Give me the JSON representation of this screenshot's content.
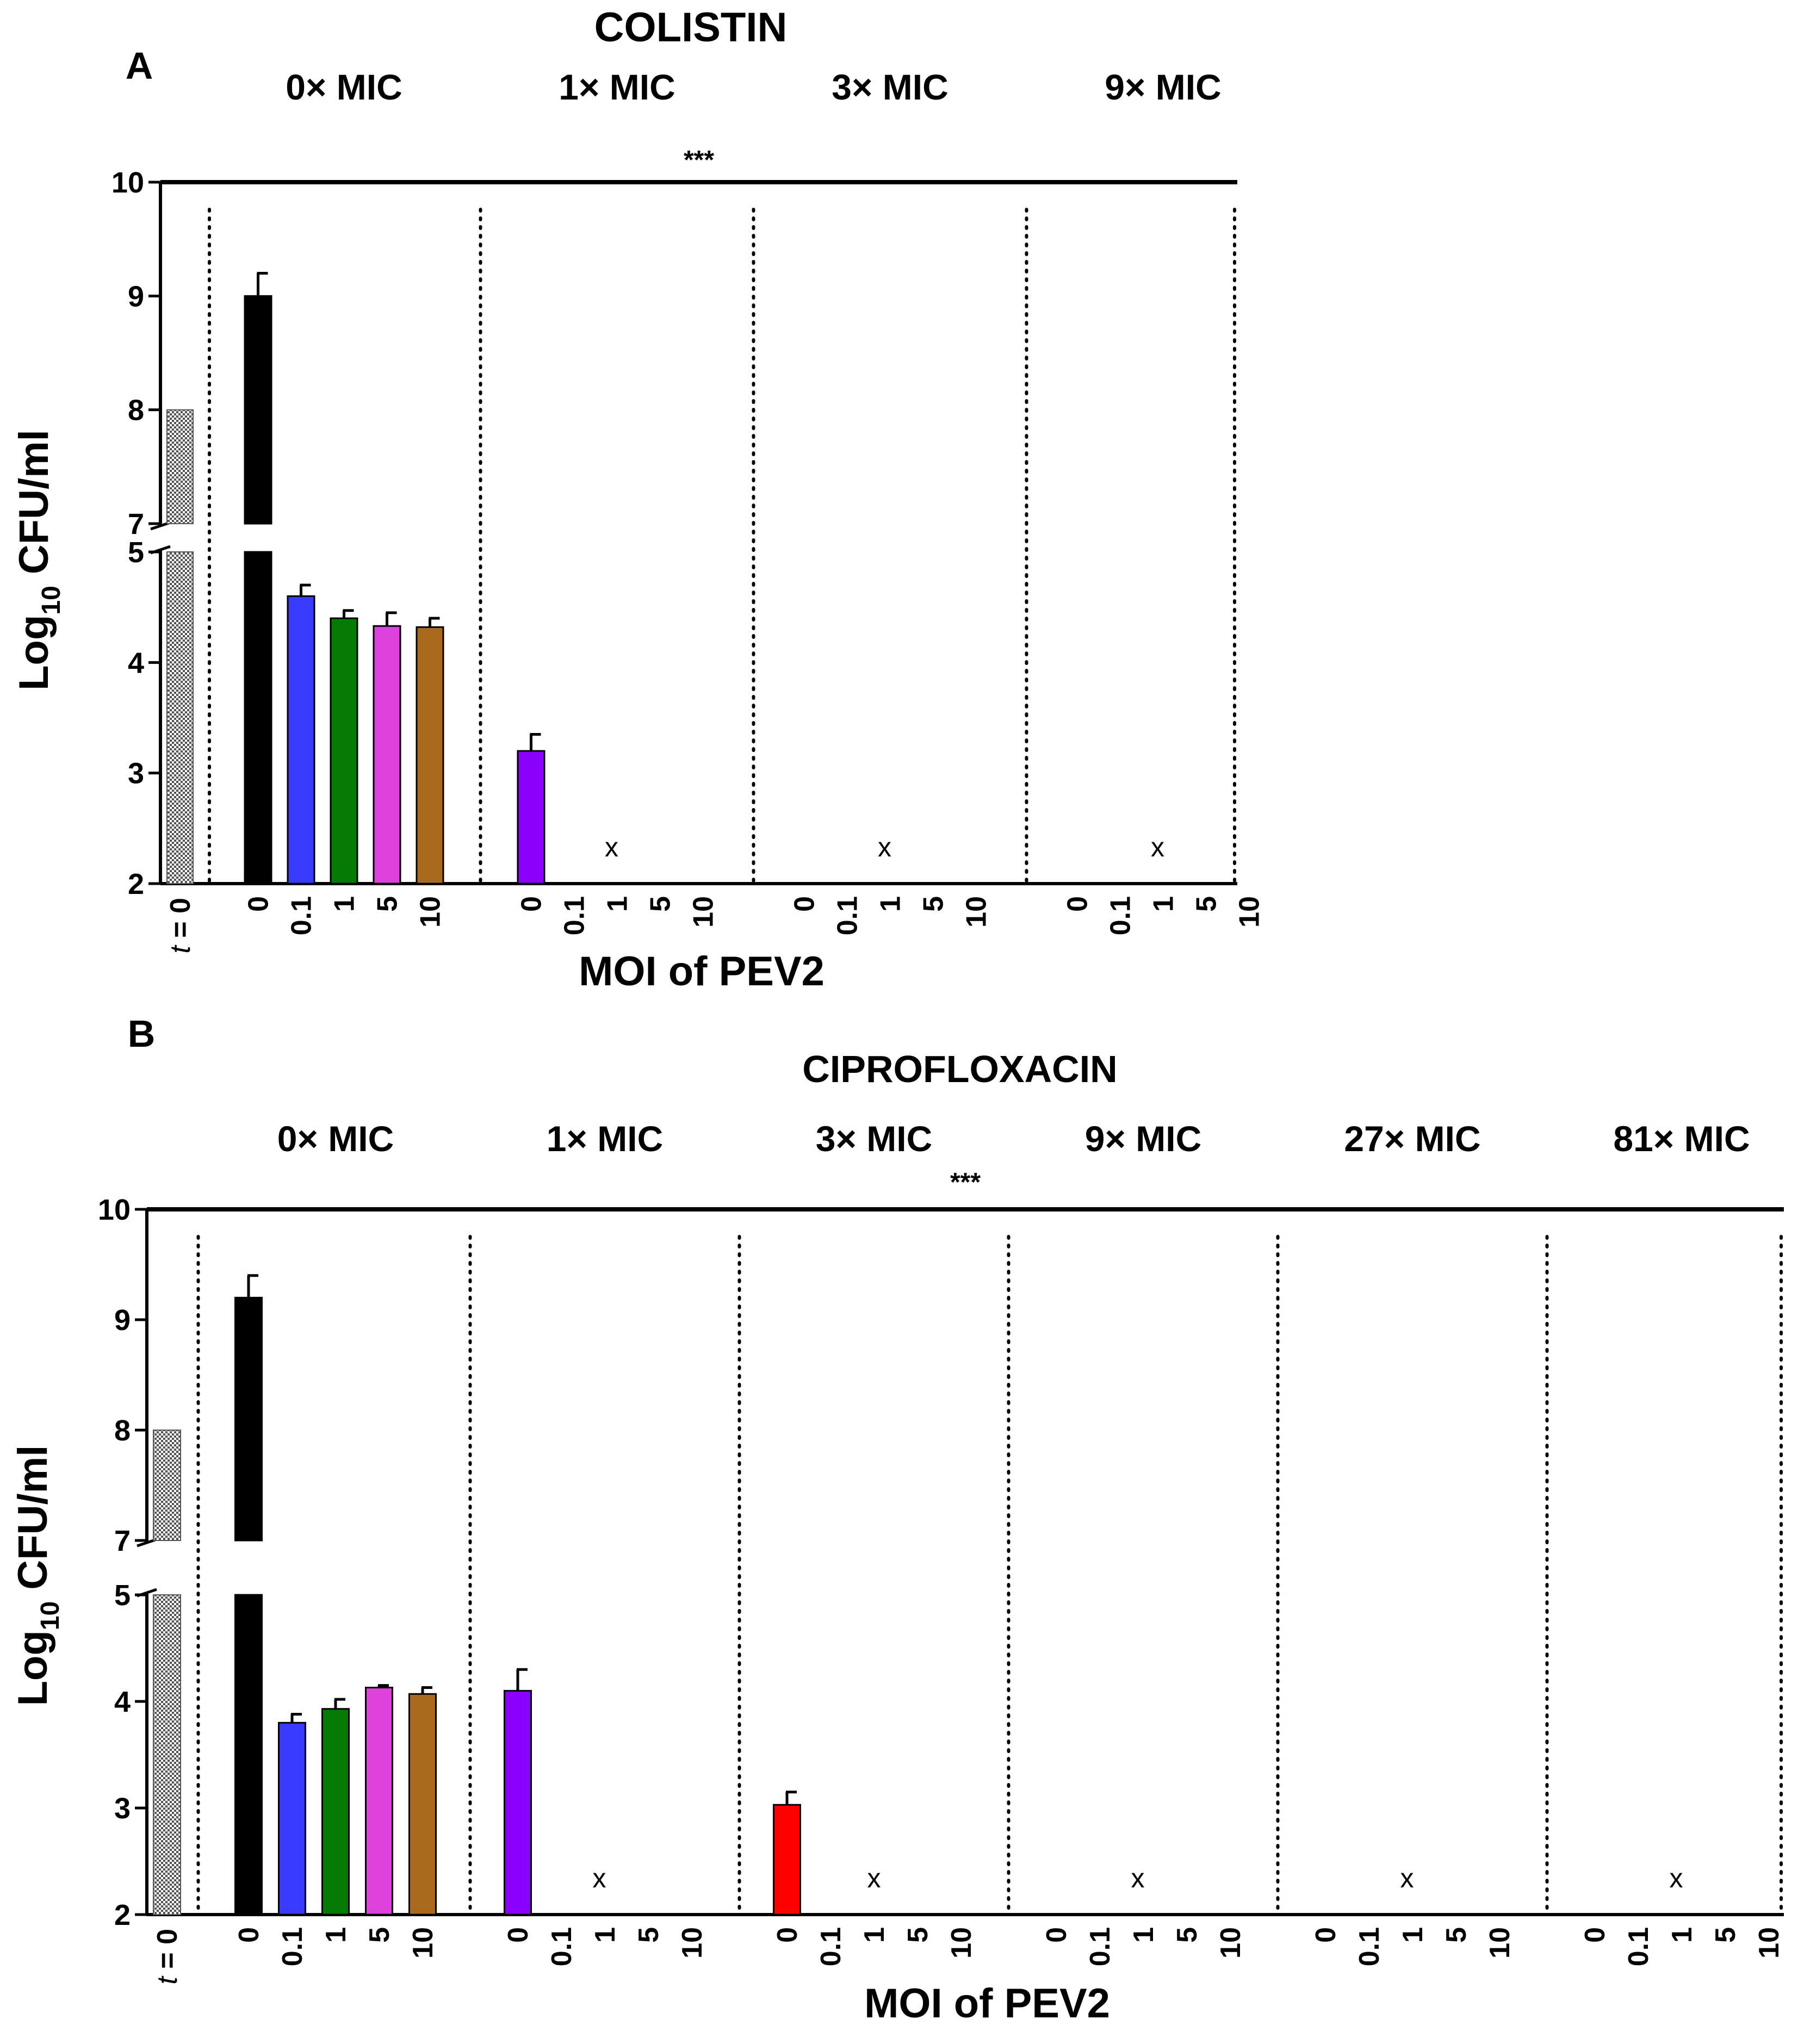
{
  "chart_data": [
    {
      "panel_label": "A",
      "type": "bar",
      "title": "COLISTIN",
      "ylabel_main": "Log",
      "ylabel_sub": "10",
      "ylabel_rest": " CFU/ml",
      "xlabel": "MOI of PEV2",
      "significance": "***",
      "y_upper_ticks": [
        "10",
        "9",
        "8",
        "7"
      ],
      "y_lower_ticks": [
        "5",
        "4",
        "3",
        "2"
      ],
      "y_break": [
        5,
        7
      ],
      "ylim": [
        2,
        10
      ],
      "baseline": {
        "label": "t = 0",
        "label_italic": "t",
        "label_rest": " = 0",
        "value": 8,
        "color": "#c8c8c8"
      },
      "moi_levels": [
        "0",
        "0.1",
        "1",
        "5",
        "10"
      ],
      "series_colors": [
        "#000000",
        "#3b3bff",
        "#057a05",
        "#dd42dd",
        "#a86a1e",
        "#8b00ff"
      ],
      "groups": [
        {
          "label": "0× MIC",
          "values": [
            9.0,
            4.6,
            4.4,
            4.33,
            4.32
          ],
          "errors": [
            0.2,
            0.1,
            0.07,
            0.12,
            0.08
          ],
          "colors": [
            "#000000",
            "#3b3bff",
            "#057a05",
            "#dd42dd",
            "#a86a1e"
          ],
          "marker": ""
        },
        {
          "label": "1× MIC",
          "values": [
            3.2,
            null,
            null,
            null,
            null
          ],
          "errors": [
            0.15,
            null,
            null,
            null,
            null
          ],
          "colors": [
            "#8b00ff",
            null,
            null,
            null,
            null
          ],
          "marker": "x"
        },
        {
          "label": "3× MIC",
          "values": [
            null,
            null,
            null,
            null,
            null
          ],
          "errors": [
            null,
            null,
            null,
            null,
            null
          ],
          "colors": [
            null,
            null,
            null,
            null,
            null
          ],
          "marker": "x"
        },
        {
          "label": "9× MIC",
          "values": [
            null,
            null,
            null,
            null,
            null
          ],
          "errors": [
            null,
            null,
            null,
            null,
            null
          ],
          "colors": [
            null,
            null,
            null,
            null,
            null
          ],
          "marker": "x"
        }
      ]
    },
    {
      "panel_label": "B",
      "type": "bar",
      "title": "CIPROFLOXACIN",
      "ylabel_main": "Log",
      "ylabel_sub": "10",
      "ylabel_rest": " CFU/ml",
      "xlabel": "MOI of PEV2",
      "significance": "***",
      "y_upper_ticks": [
        "10",
        "9",
        "8",
        "7"
      ],
      "y_lower_ticks": [
        "5",
        "4",
        "3",
        "2"
      ],
      "y_break": [
        5,
        7
      ],
      "ylim": [
        2,
        10
      ],
      "baseline": {
        "label": "t = 0",
        "label_italic": "t",
        "label_rest": " = 0",
        "value": 8,
        "color": "#c8c8c8"
      },
      "moi_levels": [
        "0",
        "0.1",
        "1",
        "5",
        "10"
      ],
      "series_colors": [
        "#000000",
        "#3b3bff",
        "#057a05",
        "#dd42dd",
        "#a86a1e",
        "#8b00ff",
        "#ff0000"
      ],
      "groups": [
        {
          "label": "0× MIC",
          "values": [
            9.2,
            3.8,
            3.93,
            4.13,
            4.07
          ],
          "errors": [
            0.2,
            0.08,
            0.09,
            0.02,
            0.06
          ],
          "colors": [
            "#000000",
            "#3b3bff",
            "#057a05",
            "#dd42dd",
            "#a86a1e"
          ],
          "marker": ""
        },
        {
          "label": "1× MIC",
          "values": [
            4.1,
            null,
            null,
            null,
            null
          ],
          "errors": [
            0.2,
            null,
            null,
            null,
            null
          ],
          "colors": [
            "#8b00ff",
            null,
            null,
            null,
            null
          ],
          "marker": "x"
        },
        {
          "label": "3× MIC",
          "values": [
            3.03,
            null,
            null,
            null,
            null
          ],
          "errors": [
            0.12,
            null,
            null,
            null,
            null
          ],
          "colors": [
            "#ff0000",
            null,
            null,
            null,
            null
          ],
          "marker": "x"
        },
        {
          "label": "9× MIC",
          "values": [
            null,
            null,
            null,
            null,
            null
          ],
          "errors": [
            null,
            null,
            null,
            null,
            null
          ],
          "colors": [
            null,
            null,
            null,
            null,
            null
          ],
          "marker": "x"
        },
        {
          "label": "27× MIC",
          "values": [
            null,
            null,
            null,
            null,
            null
          ],
          "errors": [
            null,
            null,
            null,
            null,
            null
          ],
          "colors": [
            null,
            null,
            null,
            null,
            null
          ],
          "marker": "x"
        },
        {
          "label": "81× MIC",
          "values": [
            null,
            null,
            null,
            null,
            null
          ],
          "errors": [
            null,
            null,
            null,
            null,
            null
          ],
          "colors": [
            null,
            null,
            null,
            null,
            null
          ],
          "marker": "x"
        }
      ]
    }
  ]
}
